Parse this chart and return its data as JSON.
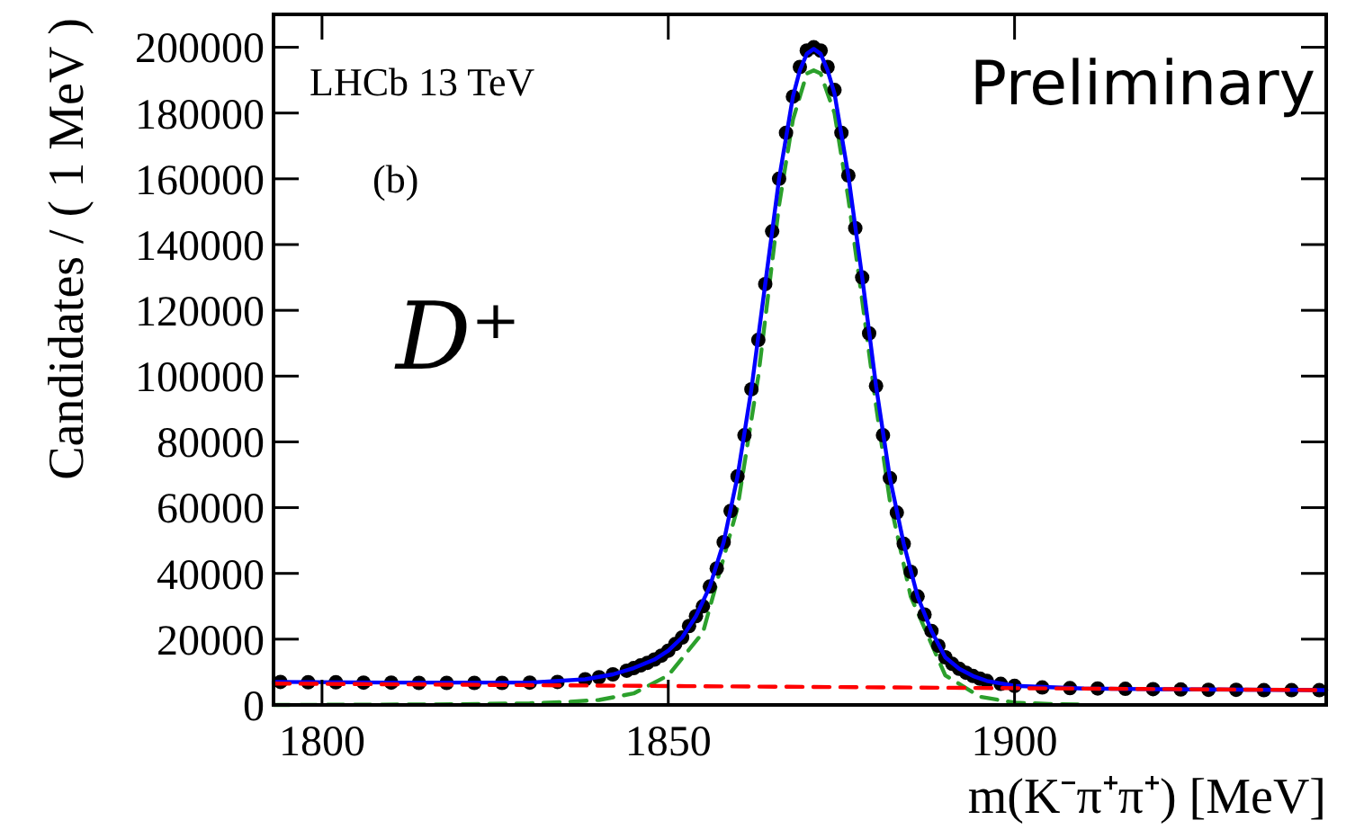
{
  "chart_data": {
    "type": "scatter",
    "xlabel": "m(K⁻π⁺π⁺) [MeV]",
    "ylabel": "Candidates / ( 1 MeV )",
    "xlim": [
      1793,
      1945
    ],
    "ylim": [
      0,
      210000
    ],
    "xticks": [
      1800,
      1850,
      1900
    ],
    "yticks": [
      0,
      20000,
      40000,
      60000,
      80000,
      100000,
      120000,
      140000,
      160000,
      180000,
      200000
    ],
    "grid": false,
    "annotations": [
      "LHCb 13 TeV",
      "(b)",
      "Preliminary",
      "D⁺"
    ],
    "series": [
      {
        "type": "line",
        "color": "#2ca02c",
        "line_style": "dashed",
        "x": [
          1793,
          1820,
          1830,
          1835,
          1840,
          1845,
          1850,
          1855,
          1860,
          1863,
          1866,
          1868,
          1870,
          1871,
          1872,
          1874,
          1876,
          1878,
          1880,
          1882,
          1885,
          1890,
          1895,
          1900,
          1905,
          1910
        ],
        "values": [
          0,
          200,
          500,
          900,
          1500,
          3500,
          9000,
          22000,
          60000,
          100000,
          152000,
          178000,
          192000,
          193000,
          192000,
          180000,
          154000,
          123000,
          91000,
          62000,
          33000,
          9000,
          2500,
          700,
          300,
          100
        ]
      },
      {
        "type": "scatter",
        "color": "#000000",
        "marker": "circle",
        "x": [
          1794,
          1798,
          1802,
          1806,
          1810,
          1814,
          1818,
          1822,
          1826,
          1830,
          1834,
          1838,
          1840,
          1842,
          1844,
          1845,
          1846,
          1847,
          1848,
          1849,
          1850,
          1851,
          1852,
          1853,
          1854,
          1855,
          1856,
          1857,
          1858,
          1859,
          1860,
          1861,
          1862,
          1863,
          1864,
          1865,
          1866,
          1867,
          1868,
          1869,
          1870,
          1871,
          1872,
          1873,
          1874,
          1875,
          1876,
          1877,
          1878,
          1879,
          1880,
          1881,
          1882,
          1883,
          1884,
          1885,
          1886,
          1887,
          1888,
          1889,
          1890,
          1891,
          1892,
          1893,
          1894,
          1895,
          1896,
          1898,
          1900,
          1904,
          1908,
          1912,
          1916,
          1920,
          1924,
          1928,
          1932,
          1936,
          1940,
          1944
        ],
        "values": [
          7000,
          6900,
          6900,
          6800,
          6800,
          6700,
          6700,
          6700,
          6700,
          6800,
          7000,
          7800,
          8400,
          9300,
          10400,
          11200,
          12000,
          12800,
          13800,
          15000,
          16500,
          18500,
          20500,
          24000,
          27000,
          30000,
          36000,
          41500,
          49500,
          59000,
          69500,
          82000,
          96000,
          111000,
          128000,
          144000,
          160000,
          174000,
          185000,
          194000,
          199000,
          200000,
          199000,
          194000,
          187000,
          174000,
          161000,
          145000,
          130000,
          113000,
          97000,
          82000,
          69000,
          58500,
          49000,
          40500,
          33000,
          27500,
          22500,
          18000,
          14500,
          12500,
          11000,
          9800,
          8800,
          8000,
          7300,
          6400,
          5800,
          5300,
          5100,
          5000,
          4900,
          4800,
          4700,
          4600,
          4600,
          4500,
          4500,
          4500
        ]
      },
      {
        "type": "line",
        "color": "#0000ff",
        "line_style": "solid",
        "x": [
          1793,
          1810,
          1830,
          1838,
          1842,
          1845,
          1848,
          1850,
          1852,
          1854,
          1856,
          1858,
          1860,
          1862,
          1864,
          1866,
          1868,
          1869,
          1870,
          1871,
          1872,
          1873,
          1874,
          1876,
          1878,
          1880,
          1882,
          1884,
          1886,
          1888,
          1890,
          1892,
          1894,
          1896,
          1900,
          1910,
          1920,
          1945
        ],
        "values": [
          7000,
          6800,
          6800,
          7800,
          9300,
          11200,
          13800,
          16500,
          20500,
          27000,
          36000,
          49500,
          69500,
          96000,
          128000,
          160000,
          185000,
          193000,
          198000,
          199500,
          198000,
          193000,
          186000,
          161000,
          130000,
          97000,
          69000,
          49000,
          33000,
          22500,
          14500,
          11000,
          8800,
          7300,
          5800,
          5000,
          4800,
          4500
        ]
      },
      {
        "type": "line",
        "color": "#ff0000",
        "line_style": "dashed",
        "x": [
          1793,
          1945
        ],
        "values": [
          6500,
          4500
        ]
      }
    ]
  }
}
